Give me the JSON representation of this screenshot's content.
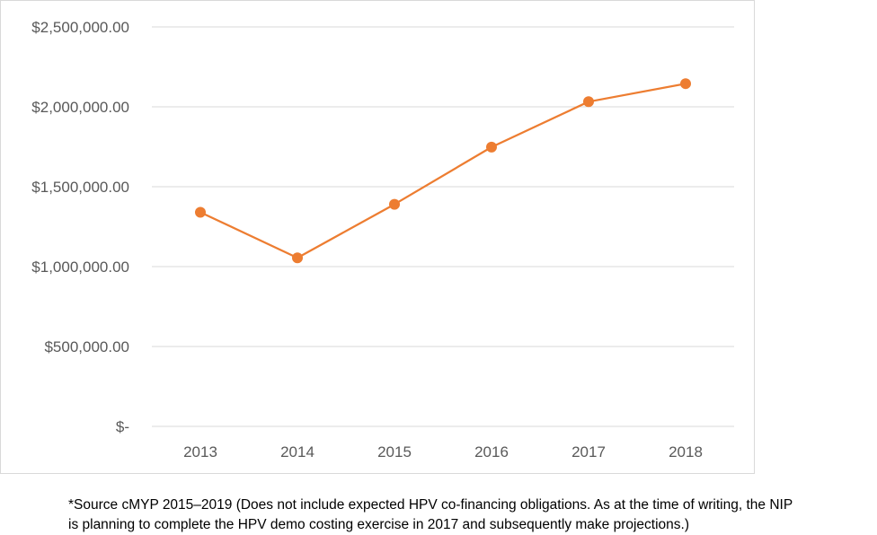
{
  "chart_data": {
    "type": "line",
    "title": "",
    "xlabel": "",
    "ylabel": "",
    "categories": [
      "2013",
      "2014",
      "2015",
      "2016",
      "2017",
      "2018"
    ],
    "series": [
      {
        "values": [
          1340000,
          1055000,
          1390000,
          1748000,
          2032000,
          2145000
        ],
        "color": "#ed7d31"
      }
    ],
    "ylim": [
      0,
      2500000
    ],
    "yticks": [
      0,
      500000,
      1000000,
      1500000,
      2000000,
      2500000
    ],
    "ytick_labels": [
      "$-",
      "$500,000.00",
      "$1,000,000.00",
      "$1,500,000.00",
      "$2,000,000.00",
      "$2,500,000.00"
    ],
    "grid": true,
    "legend": "none"
  },
  "footnote": {
    "line1": "*Source cMYP 2015–2019 (Does not include expected HPV co-financing obligations. As at the time of writing, the NIP",
    "line2": "is planning to complete the HPV demo costing exercise in 2017 and subsequently make projections.)"
  }
}
